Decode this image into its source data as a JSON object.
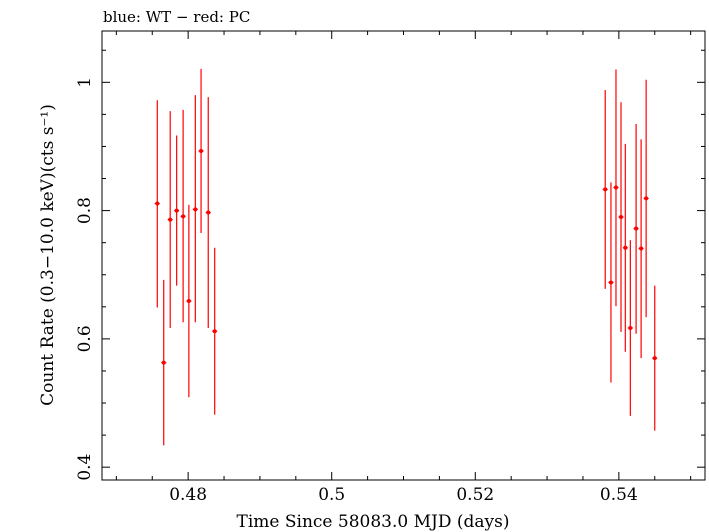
{
  "chart_data": {
    "type": "scatter",
    "title": "blue: WT − red: PC",
    "xlabel": "Time Since 58083.0 MJD (days)",
    "ylabel": "Count Rate (0.3−10.0 keV)(cts s⁻¹)",
    "xlim": [
      0.468,
      0.552
    ],
    "ylim": [
      0.38,
      1.08
    ],
    "x_ticks": [
      0.48,
      0.5,
      0.52,
      0.54
    ],
    "x_tick_labels": [
      "0.48",
      "0.5",
      "0.52",
      "0.54"
    ],
    "y_ticks": [
      0.4,
      0.6,
      0.8,
      1.0
    ],
    "y_tick_labels": [
      "0.4",
      "0.6",
      "0.8",
      "1"
    ],
    "grid": false,
    "series": [
      {
        "color": "#ff0000",
        "points": [
          {
            "x": 0.4757,
            "y": 0.811,
            "xerr": 0.00035,
            "ylo": 0.649,
            "yhi": 0.972
          },
          {
            "x": 0.4766,
            "y": 0.563,
            "xerr": 0.00035,
            "ylo": 0.434,
            "yhi": 0.692
          },
          {
            "x": 0.4775,
            "y": 0.786,
            "xerr": 0.00035,
            "ylo": 0.617,
            "yhi": 0.955
          },
          {
            "x": 0.4784,
            "y": 0.8,
            "xerr": 0.00035,
            "ylo": 0.683,
            "yhi": 0.917
          },
          {
            "x": 0.4793,
            "y": 0.791,
            "xerr": 0.00035,
            "ylo": 0.626,
            "yhi": 0.957
          },
          {
            "x": 0.4801,
            "y": 0.659,
            "xerr": 0.00035,
            "ylo": 0.509,
            "yhi": 0.809
          },
          {
            "x": 0.481,
            "y": 0.802,
            "xerr": 0.00035,
            "ylo": 0.626,
            "yhi": 0.98
          },
          {
            "x": 0.4818,
            "y": 0.893,
            "xerr": 0.00035,
            "ylo": 0.765,
            "yhi": 1.021
          },
          {
            "x": 0.4828,
            "y": 0.797,
            "xerr": 0.00035,
            "ylo": 0.617,
            "yhi": 0.977
          },
          {
            "x": 0.4837,
            "y": 0.612,
            "xerr": 0.00035,
            "ylo": 0.482,
            "yhi": 0.742
          },
          {
            "x": 0.5381,
            "y": 0.833,
            "xerr": 0.00035,
            "ylo": 0.678,
            "yhi": 0.988
          },
          {
            "x": 0.5389,
            "y": 0.688,
            "xerr": 0.00035,
            "ylo": 0.532,
            "yhi": 0.844
          },
          {
            "x": 0.5396,
            "y": 0.836,
            "xerr": 0.00035,
            "ylo": 0.651,
            "yhi": 1.02
          },
          {
            "x": 0.5403,
            "y": 0.79,
            "xerr": 0.00035,
            "ylo": 0.611,
            "yhi": 0.969
          },
          {
            "x": 0.5409,
            "y": 0.742,
            "xerr": 0.00035,
            "ylo": 0.58,
            "yhi": 0.904
          },
          {
            "x": 0.5416,
            "y": 0.617,
            "xerr": 0.00035,
            "ylo": 0.48,
            "yhi": 0.754
          },
          {
            "x": 0.5424,
            "y": 0.772,
            "xerr": 0.00035,
            "ylo": 0.608,
            "yhi": 0.935
          },
          {
            "x": 0.5431,
            "y": 0.741,
            "xerr": 0.00035,
            "ylo": 0.57,
            "yhi": 0.911
          },
          {
            "x": 0.5438,
            "y": 0.819,
            "xerr": 0.00035,
            "ylo": 0.634,
            "yhi": 1.004
          },
          {
            "x": 0.545,
            "y": 0.57,
            "xerr": 0.00035,
            "ylo": 0.457,
            "yhi": 0.683
          }
        ]
      }
    ]
  }
}
